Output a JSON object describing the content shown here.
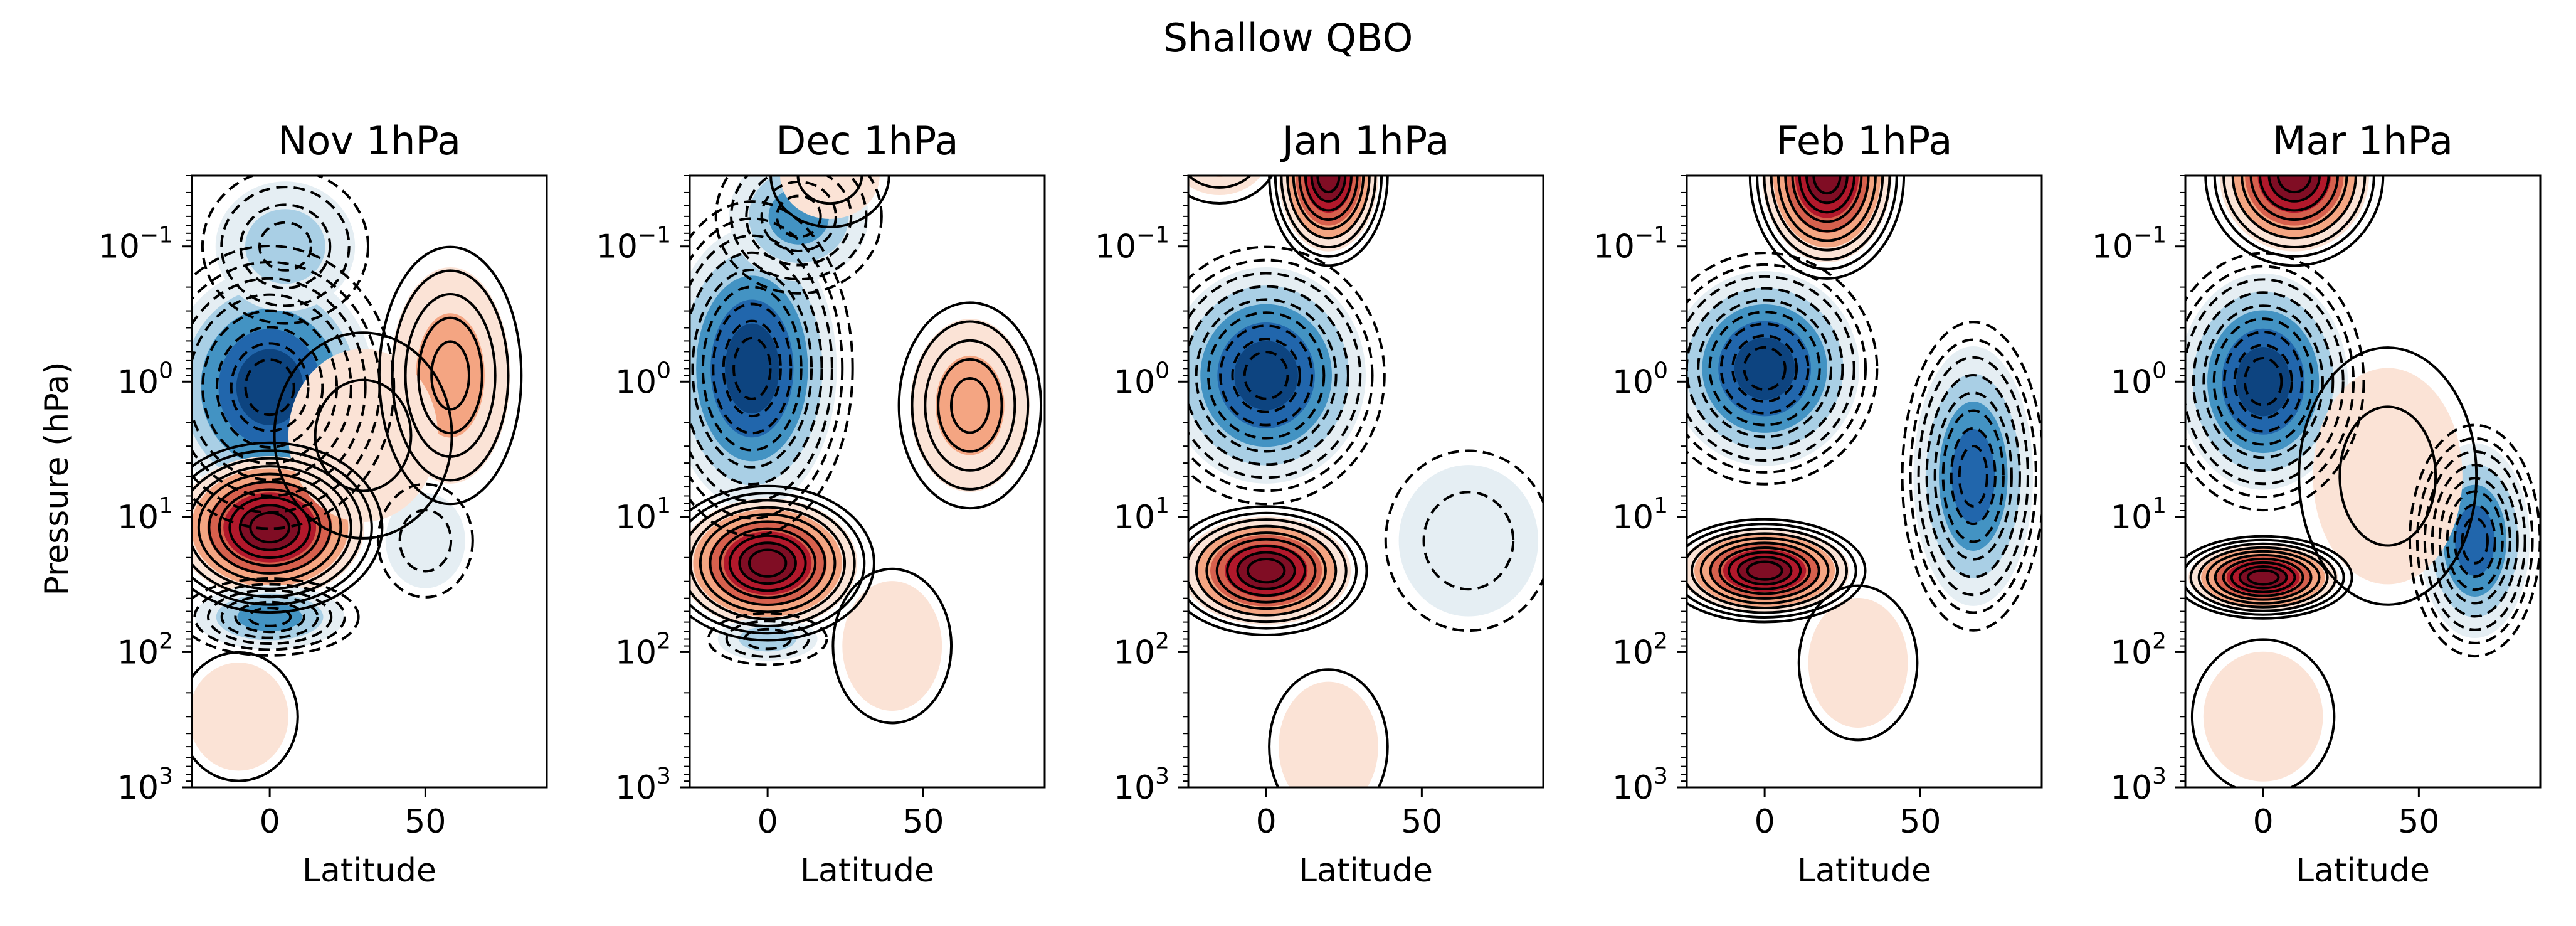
{
  "chart_data": {
    "type": "contour",
    "title": "Shallow QBO",
    "shared_ylabel": "Pressure (hPa)",
    "xlabel": "Latitude",
    "x_range": [
      -25,
      89
    ],
    "x_ticks": [
      {
        "value": 0,
        "label": "0"
      },
      {
        "value": 50,
        "label": "50"
      }
    ],
    "y_scale": "log",
    "y_range_hPa": [
      0.03,
      1000
    ],
    "y_inverted": true,
    "y_ticks": [
      {
        "value": 0.1,
        "base": "10",
        "exp": "−1"
      },
      {
        "value": 1,
        "base": "10",
        "exp": "0"
      },
      {
        "value": 10,
        "base": "10",
        "exp": "1"
      },
      {
        "value": 100,
        "base": "10",
        "exp": "2"
      },
      {
        "value": 1000,
        "base": "10",
        "exp": "3"
      }
    ],
    "colormap": "RdBu_r",
    "colors": {
      "pos": [
        "#fbe3d6",
        "#f4a582",
        "#d6604d",
        "#b2182b",
        "#800d24"
      ],
      "neg": [
        "#e5eef3",
        "#a9cfe5",
        "#4393c3",
        "#2166ac",
        "#0d4480"
      ]
    },
    "panels": [
      {
        "title": "Nov 1hPa",
        "blobs": [
          {
            "lat": 0,
            "p": 1.1,
            "amp": -5,
            "sx": 21,
            "sy": 0.55,
            "n": 8
          },
          {
            "lat": 5,
            "p": 0.1,
            "amp": -2,
            "sx": 14,
            "sy": 0.3,
            "n": 4
          },
          {
            "lat": 0,
            "p": 12,
            "amp": 6,
            "sx": 19,
            "sy": 0.33,
            "n": 10
          },
          {
            "lat": 0,
            "p": 55,
            "amp": -3,
            "sx": 15,
            "sy": 0.15,
            "n": 6
          },
          {
            "lat": 58,
            "p": 0.9,
            "amp": 2,
            "sx": 12,
            "sy": 0.5,
            "n": 5
          },
          {
            "lat": 50,
            "p": 15,
            "amp": -1,
            "sx": 8,
            "sy": 0.22,
            "n": 2
          },
          {
            "lat": -10,
            "p": 300,
            "amp": 0.5,
            "sx": 10,
            "sy": 0.25,
            "n": 1
          },
          {
            "lat": 30,
            "p": 2.5,
            "amp": 1,
            "sx": 15,
            "sy": 0.4,
            "n": 2
          }
        ]
      },
      {
        "title": "Dec 1hPa",
        "blobs": [
          {
            "lat": -5,
            "p": 0.8,
            "amp": -5,
            "sx": 17,
            "sy": 0.65,
            "n": 9
          },
          {
            "lat": 10,
            "p": 0.06,
            "amp": -3,
            "sx": 14,
            "sy": 0.3,
            "n": 5
          },
          {
            "lat": 0,
            "p": 22,
            "amp": 6,
            "sx": 18,
            "sy": 0.3,
            "n": 10
          },
          {
            "lat": 65,
            "p": 1.5,
            "amp": 2,
            "sx": 12,
            "sy": 0.4,
            "n": 5
          },
          {
            "lat": 0,
            "p": 80,
            "amp": -1.5,
            "sx": 10,
            "sy": 0.1,
            "n": 3
          },
          {
            "lat": 20,
            "p": 0.03,
            "amp": 1,
            "sx": 10,
            "sy": 0.2,
            "n": 2
          },
          {
            "lat": 40,
            "p": 90,
            "amp": 0.5,
            "sx": 10,
            "sy": 0.3,
            "n": 1
          }
        ]
      },
      {
        "title": "Jan 1hPa",
        "blobs": [
          {
            "lat": 0,
            "p": 0.9,
            "amp": -5,
            "sx": 20,
            "sy": 0.5,
            "n": 9
          },
          {
            "lat": 20,
            "p": 0.03,
            "amp": 6,
            "sx": 10,
            "sy": 0.35,
            "n": 9
          },
          {
            "lat": 0,
            "p": 25,
            "amp": 5,
            "sx": 17,
            "sy": 0.25,
            "n": 9
          },
          {
            "lat": 65,
            "p": 15,
            "amp": -1,
            "sx": 14,
            "sy": 0.35,
            "n": 2
          },
          {
            "lat": -15,
            "p": 0.02,
            "amp": 1.5,
            "sx": 10,
            "sy": 0.2,
            "n": 3
          },
          {
            "lat": 20,
            "p": 500,
            "amp": 0.5,
            "sx": 10,
            "sy": 0.3,
            "n": 1
          }
        ]
      },
      {
        "title": "Feb 1hPa",
        "blobs": [
          {
            "lat": 0,
            "p": 0.8,
            "amp": -5,
            "sx": 19,
            "sy": 0.45,
            "n": 9
          },
          {
            "lat": 20,
            "p": 0.03,
            "amp": 6,
            "sx": 13,
            "sy": 0.4,
            "n": 10
          },
          {
            "lat": 0,
            "p": 25,
            "amp": 5,
            "sx": 17,
            "sy": 0.2,
            "n": 10
          },
          {
            "lat": 67,
            "p": 5,
            "amp": -4,
            "sx": 12,
            "sy": 0.6,
            "n": 8
          },
          {
            "lat": 30,
            "p": 120,
            "amp": 0.5,
            "sx": 10,
            "sy": 0.3,
            "n": 1
          }
        ]
      },
      {
        "title": "Mar 1hPa",
        "blobs": [
          {
            "lat": 0,
            "p": 1.0,
            "amp": -5,
            "sx": 17,
            "sy": 0.5,
            "n": 9
          },
          {
            "lat": 10,
            "p": 0.03,
            "amp": 6,
            "sx": 15,
            "sy": 0.35,
            "n": 9
          },
          {
            "lat": 0,
            "p": 28,
            "amp": 5,
            "sx": 15,
            "sy": 0.16,
            "n": 10
          },
          {
            "lat": 68,
            "p": 15,
            "amp": -4,
            "sx": 11,
            "sy": 0.45,
            "n": 8
          },
          {
            "lat": 40,
            "p": 5,
            "amp": 1,
            "sx": 15,
            "sy": 0.5,
            "n": 2
          },
          {
            "lat": 0,
            "p": 300,
            "amp": 0.5,
            "sx": 12,
            "sy": 0.3,
            "n": 1
          }
        ]
      }
    ]
  }
}
